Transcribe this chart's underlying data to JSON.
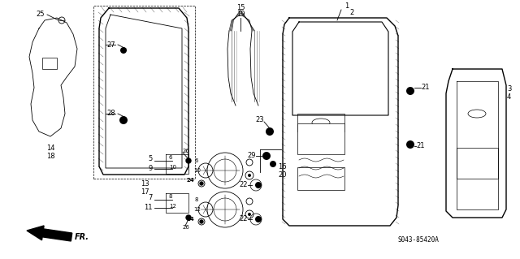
{
  "bg_color": "#ffffff",
  "diagram_code": "S043-85420A",
  "fig_width": 6.4,
  "fig_height": 3.19,
  "dpi": 100,
  "color": "#000000",
  "lw_main": 1.0,
  "lw_thin": 0.6,
  "lw_detail": 0.5,
  "font_size": 6.0,
  "font_size_sm": 5.0
}
